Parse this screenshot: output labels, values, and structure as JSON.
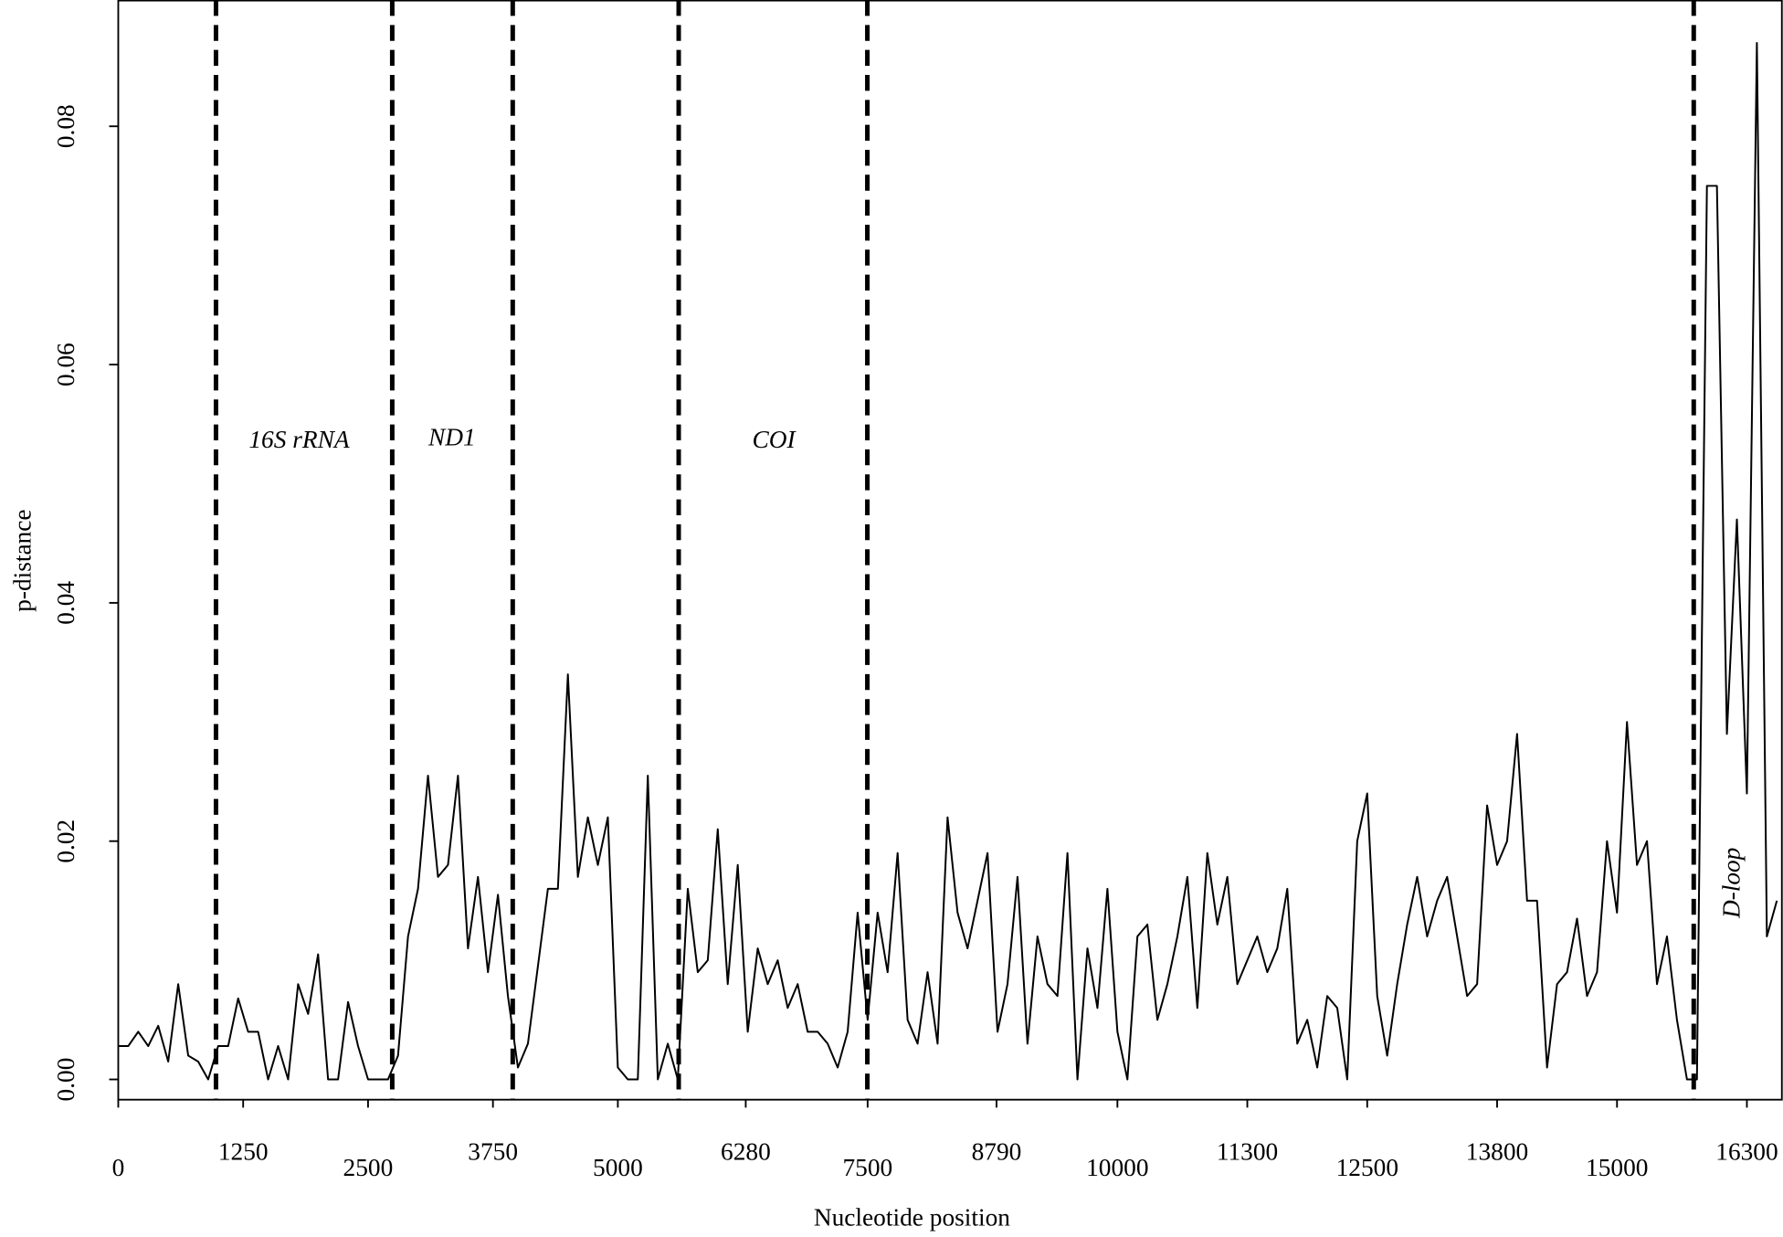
{
  "chart_data": {
    "type": "line",
    "xlabel": "Nucleotide position",
    "ylabel": "p-distance",
    "xlim": [
      0,
      16650
    ],
    "ylim": [
      -0.0017,
      0.0906
    ],
    "xticks": [
      0,
      1250,
      2500,
      3750,
      5000,
      6280,
      7500,
      8790,
      10000,
      11300,
      12500,
      13800,
      15000,
      16300
    ],
    "yticks": [
      {
        "value": 0,
        "label": "0.00"
      },
      {
        "value": 0.02,
        "label": "0.02"
      },
      {
        "value": 0.04,
        "label": "0.04"
      },
      {
        "value": 0.06,
        "label": "0.06"
      },
      {
        "value": 0.08,
        "label": "0.08"
      }
    ],
    "boundaries": [
      978,
      2742,
      3948,
      5609,
      7497,
      15768
    ],
    "annotations": [
      {
        "text": "16S rRNA",
        "x": 1810,
        "y": 0.0535,
        "rotate": false
      },
      {
        "text": "ND1",
        "x": 3340,
        "y": 0.0537,
        "rotate": false
      },
      {
        "text": "COI",
        "x": 6560,
        "y": 0.0535,
        "rotate": false
      },
      {
        "text": "D-loop",
        "x": 16170,
        "y": 0.0165,
        "rotate": true
      }
    ],
    "series": [
      {
        "color": "#000000",
        "x": [
          0,
          100,
          200,
          300,
          400,
          500,
          600,
          700,
          800,
          900,
          1000,
          1100,
          1200,
          1300,
          1400,
          1500,
          1600,
          1700,
          1800,
          1900,
          2000,
          2100,
          2200,
          2300,
          2400,
          2500,
          2600,
          2700,
          2800,
          2900,
          3000,
          3100,
          3200,
          3300,
          3400,
          3500,
          3600,
          3700,
          3800,
          3900,
          4000,
          4100,
          4200,
          4300,
          4400,
          4500,
          4600,
          4700,
          4800,
          4900,
          5000,
          5100,
          5200,
          5300,
          5400,
          5500,
          5600,
          5700,
          5800,
          5900,
          6000,
          6100,
          6200,
          6300,
          6400,
          6500,
          6600,
          6700,
          6800,
          6900,
          7000,
          7100,
          7200,
          7300,
          7400,
          7500,
          7600,
          7700,
          7800,
          7900,
          8000,
          8100,
          8200,
          8300,
          8400,
          8500,
          8600,
          8700,
          8800,
          8900,
          9000,
          9100,
          9200,
          9300,
          9400,
          9500,
          9600,
          9700,
          9800,
          9900,
          10000,
          10100,
          10200,
          10300,
          10400,
          10500,
          10600,
          10700,
          10800,
          10900,
          11000,
          11100,
          11200,
          11300,
          11400,
          11500,
          11600,
          11700,
          11800,
          11900,
          12000,
          12100,
          12200,
          12300,
          12400,
          12500,
          12600,
          12700,
          12800,
          12900,
          13000,
          13100,
          13200,
          13300,
          13400,
          13500,
          13600,
          13700,
          13800,
          13900,
          14000,
          14100,
          14200,
          14300,
          14400,
          14500,
          14600,
          14700,
          14800,
          14900,
          15000,
          15100,
          15200,
          15300,
          15400,
          15500,
          15600,
          15700,
          15800,
          15900,
          16000,
          16100,
          16200,
          16300,
          16400,
          16500,
          16600
        ],
        "values": [
          0.0028,
          0.0028,
          0.004,
          0.0028,
          0.0045,
          0.0015,
          0.008,
          0.002,
          0.0015,
          0,
          0.0028,
          0.0028,
          0.0068,
          0.004,
          0.004,
          0,
          0.0028,
          0,
          0.008,
          0.0055,
          0.0105,
          0,
          0,
          0.0065,
          0.0028,
          0,
          0,
          0,
          0.002,
          0.012,
          0.016,
          0.0255,
          0.017,
          0.018,
          0.0255,
          0.011,
          0.017,
          0.009,
          0.0155,
          0.007,
          0.001,
          0.003,
          0.0095,
          0.016,
          0.016,
          0.034,
          0.017,
          0.022,
          0.018,
          0.022,
          0.001,
          0,
          0,
          0.0255,
          0,
          0.003,
          0,
          0.016,
          0.009,
          0.01,
          0.021,
          0.008,
          0.018,
          0.004,
          0.011,
          0.008,
          0.01,
          0.006,
          0.008,
          0.004,
          0.004,
          0.003,
          0.001,
          0.004,
          0.014,
          0.005,
          0.014,
          0.009,
          0.019,
          0.005,
          0.003,
          0.009,
          0.003,
          0.022,
          0.014,
          0.011,
          0.015,
          0.019,
          0.004,
          0.008,
          0.017,
          0.003,
          0.012,
          0.008,
          0.007,
          0.019,
          0,
          0.011,
          0.006,
          0.016,
          0.004,
          0,
          0.012,
          0.013,
          0.005,
          0.008,
          0.012,
          0.017,
          0.006,
          0.019,
          0.013,
          0.017,
          0.008,
          0.01,
          0.012,
          0.009,
          0.011,
          0.016,
          0.003,
          0.005,
          0.001,
          0.007,
          0.006,
          0,
          0.02,
          0.024,
          0.007,
          0.002,
          0.008,
          0.013,
          0.017,
          0.012,
          0.015,
          0.017,
          0.012,
          0.007,
          0.008,
          0.023,
          0.018,
          0.02,
          0.029,
          0.015,
          0.015,
          0.001,
          0.008,
          0.009,
          0.0135,
          0.007,
          0.009,
          0.02,
          0.014,
          0.03,
          0.018,
          0.02,
          0.008,
          0.012,
          0.005,
          0,
          0,
          0.075,
          0.075,
          0.029,
          0.047,
          0.024,
          0.087,
          0.012,
          0.015
        ]
      }
    ]
  }
}
